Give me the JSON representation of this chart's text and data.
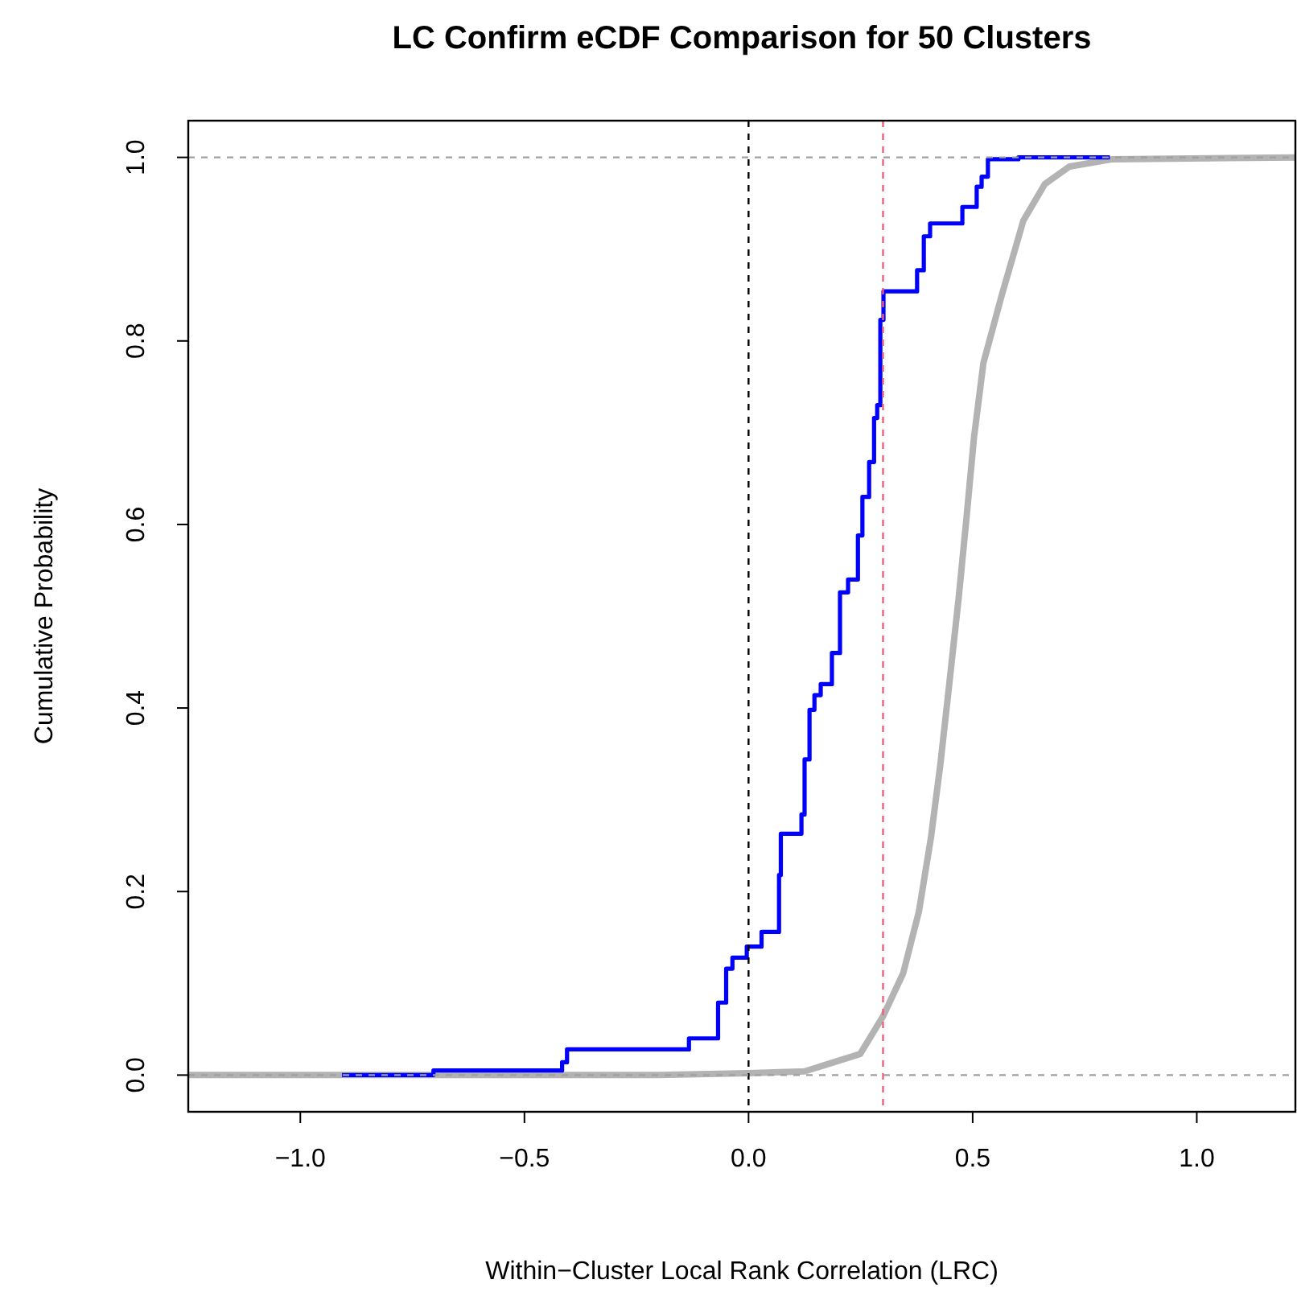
{
  "chart_data": {
    "type": "step",
    "title": "LC Confirm eCDF Comparison for 50 Clusters",
    "xlabel": "Within−Cluster Local Rank Correlation (LRC)",
    "ylabel": "Cumulative Probability",
    "xlim": [
      -1.25,
      1.22
    ],
    "ylim": [
      -0.04,
      1.04
    ],
    "xticks": [
      {
        "value": -1,
        "label": "−1.0"
      },
      {
        "value": -0.5,
        "label": "−0.5"
      },
      {
        "value": 0,
        "label": "0.0"
      },
      {
        "value": 0.5,
        "label": "0.5"
      },
      {
        "value": 1,
        "label": "1.0"
      }
    ],
    "yticks": [
      {
        "value": 0,
        "label": "0.0"
      },
      {
        "value": 0.2,
        "label": "0.2"
      },
      {
        "value": 0.4,
        "label": "0.4"
      },
      {
        "value": 0.6,
        "label": "0.6"
      },
      {
        "value": 0.8,
        "label": "0.8"
      },
      {
        "value": 1,
        "label": "1.0"
      }
    ],
    "grid": false,
    "marker": "none",
    "series": [
      {
        "type": "line",
        "color": "#b3b3b3",
        "x": [
          -1.25,
          -0.2,
          0,
          0.125,
          0.249,
          0.3,
          0.345,
          0.38,
          0.407,
          0.428,
          0.448,
          0.469,
          0.485,
          0.503,
          0.524,
          0.565,
          0.613,
          0.661,
          0.716,
          0.812,
          1.22
        ],
        "values": [
          0,
          0,
          0.002,
          0.004,
          0.023,
          0.064,
          0.111,
          0.178,
          0.259,
          0.339,
          0.427,
          0.521,
          0.601,
          0.695,
          0.776,
          0.85,
          0.931,
          0.971,
          0.99,
          0.998,
          1
        ]
      },
      {
        "type": "step",
        "color": "#0000ff",
        "x": [
          -0.907,
          -0.703,
          -0.416,
          -0.405,
          -0.133,
          -0.068,
          -0.05,
          -0.036,
          -0.004,
          0.029,
          0.068,
          0.072,
          0.118,
          0.125,
          0.136,
          0.147,
          0.161,
          0.186,
          0.204,
          0.222,
          0.244,
          0.254,
          0.269,
          0.28,
          0.287,
          0.294,
          0.301,
          0.376,
          0.391,
          0.405,
          0.477,
          0.509,
          0.52,
          0.534,
          0.602,
          0.806
        ],
        "values": [
          0,
          0.005,
          0.014,
          0.028,
          0.04,
          0.079,
          0.116,
          0.128,
          0.14,
          0.156,
          0.218,
          0.263,
          0.284,
          0.344,
          0.398,
          0.414,
          0.426,
          0.46,
          0.526,
          0.54,
          0.588,
          0.63,
          0.668,
          0.716,
          0.73,
          0.823,
          0.854,
          0.877,
          0.914,
          0.928,
          0.946,
          0.968,
          0.979,
          0.998,
          1,
          1
        ]
      }
    ],
    "ref_lines": [
      {
        "axis": "x",
        "value": 0,
        "color": "#000000",
        "line_style": "dashed"
      },
      {
        "axis": "x",
        "value": 0.3,
        "color": "#f0607a",
        "line_style": "dashed"
      },
      {
        "axis": "y",
        "value": 0,
        "color": "#a0a0a0",
        "line_style": "dashed"
      },
      {
        "axis": "y",
        "value": 1,
        "color": "#a0a0a0",
        "line_style": "dashed"
      }
    ]
  }
}
